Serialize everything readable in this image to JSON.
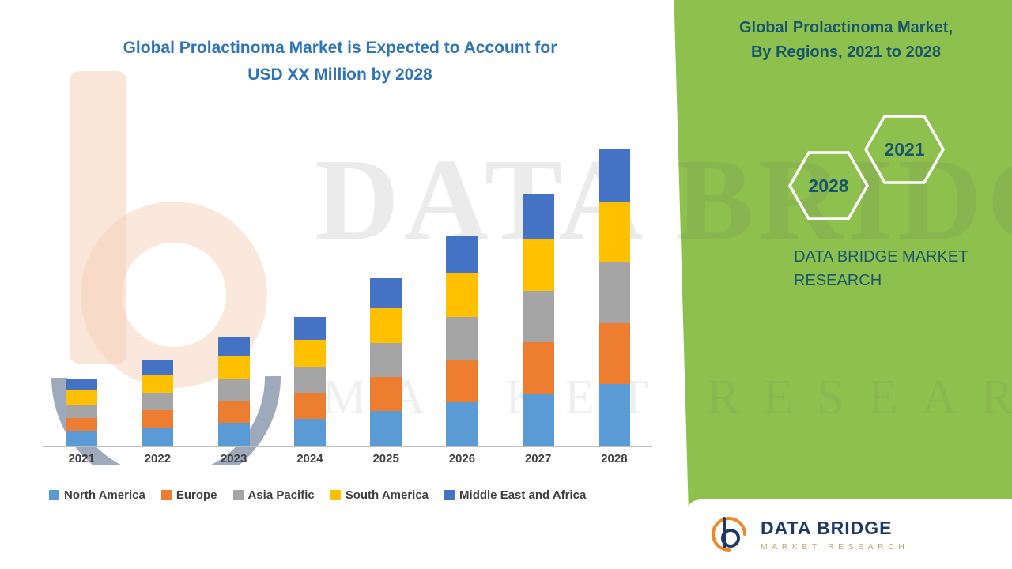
{
  "header": {
    "title_line1": "Global Prolactinoma Market is Expected to Account for",
    "title_line2": "USD XX Million by 2028"
  },
  "right_panel": {
    "heading_line1": "Global Prolactinoma Market,",
    "heading_line2": "By Regions, 2021 to 2028",
    "hexagon_back_year": "2028",
    "hexagon_front_year": "2021",
    "brand_line1": "DATA BRIDGE MARKET",
    "brand_line2": "RESEARCH"
  },
  "logo_box": {
    "brand": "DATA BRIDGE",
    "sub": "MARKET RESEARCH"
  },
  "watermark": {
    "line1": "DATA BRIDGE",
    "line2": "MARKET RESEARCH"
  },
  "colors": {
    "green_background": "#8EC04D",
    "title_blue": "#2E75B6",
    "panel_text_teal": "#1A566B",
    "axis_text": "#404040",
    "logo_navy": "#1F3864",
    "logo_orange": "#E98A2B"
  },
  "chart_data": {
    "type": "bar",
    "stacked": true,
    "title": "Global Prolactinoma Market is Expected to Account for USD XX Million by 2028",
    "xlabel": "",
    "ylabel": "",
    "y_axis_visible": false,
    "legend_position": "bottom",
    "categories": [
      "2021",
      "2022",
      "2023",
      "2024",
      "2025",
      "2026",
      "2027",
      "2028"
    ],
    "series": [
      {
        "name": "North America",
        "color": "#5B9BD5",
        "values": [
          1.8,
          2.3,
          2.9,
          3.4,
          4.4,
          5.5,
          6.6,
          7.8
        ]
      },
      {
        "name": "Europe",
        "color": "#ED7D31",
        "values": [
          1.7,
          2.2,
          2.8,
          3.3,
          4.3,
          5.4,
          6.5,
          7.7
        ]
      },
      {
        "name": "Asia Pacific",
        "color": "#A5A5A5",
        "values": [
          1.7,
          2.2,
          2.8,
          3.3,
          4.3,
          5.4,
          6.5,
          7.7
        ]
      },
      {
        "name": "South America",
        "color": "#FFC000",
        "values": [
          1.8,
          2.3,
          2.8,
          3.4,
          4.4,
          5.5,
          6.6,
          7.7
        ]
      },
      {
        "name": "Middle East and Africa",
        "color": "#4472C4",
        "values": [
          1.4,
          1.9,
          2.4,
          2.9,
          3.8,
          4.7,
          5.6,
          6.6
        ]
      }
    ]
  }
}
